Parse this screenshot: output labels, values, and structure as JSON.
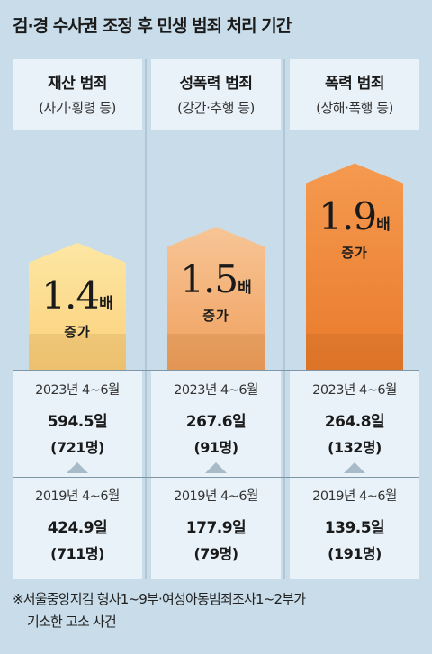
{
  "title": "검·경 수사권 조정 후 민생 범죄 처리 기간",
  "chart_data": {
    "type": "bar",
    "categories": [
      {
        "name": "재산 범죄",
        "sub": "(사기·횡령 등)"
      },
      {
        "name": "성폭력 범죄",
        "sub": "(강간·추행 등)"
      },
      {
        "name": "폭력 범죄",
        "sub": "(상해·폭행 등)"
      }
    ],
    "multipliers": [
      1.4,
      1.5,
      1.9
    ],
    "multiplier_unit": "배",
    "increase_label": "증가",
    "bar_colors": [
      [
        "#fde7a4",
        "#fbd07a"
      ],
      [
        "#f7c596",
        "#f0a05d"
      ],
      [
        "#f59a4f",
        "#e97a2c"
      ]
    ],
    "series": [
      {
        "name": "2023년 4~6월",
        "days_text": [
          "594.5일",
          "267.6일",
          "264.8일"
        ],
        "counts_text": [
          "(721명)",
          "(91명)",
          "(132명)"
        ],
        "days": [
          594.5,
          267.6,
          264.8
        ],
        "counts": [
          721,
          91,
          132
        ]
      },
      {
        "name": "2019년 4~6월",
        "days_text": [
          "424.9일",
          "177.9일",
          "139.5일"
        ],
        "counts_text": [
          "(711명)",
          "(79명)",
          "(191명)"
        ],
        "days": [
          424.9,
          177.9,
          139.5
        ],
        "counts": [
          711,
          79,
          191
        ]
      }
    ]
  },
  "footnote": {
    "line1": "※서울중앙지검 형사1~9부·여성아동범죄조사1~2부가",
    "line2": "기소한 고소 사건"
  }
}
